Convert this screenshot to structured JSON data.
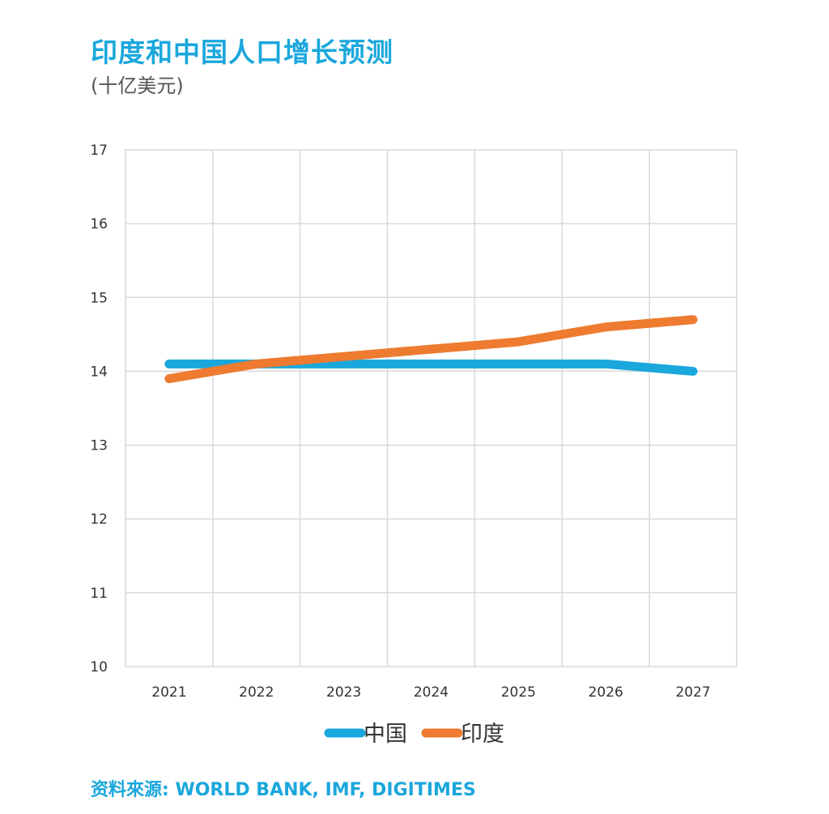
{
  "title": "印度和中国人口增长预测",
  "subtitle": "(十亿美元)",
  "source": "资料來源: WORLD BANK, IMF, DIGITIMES",
  "chart_data": {
    "type": "line",
    "x": [
      "2021",
      "2022",
      "2023",
      "2024",
      "2025",
      "2026",
      "2027"
    ],
    "series": [
      {
        "name": "中国",
        "color": "#1aa7dc",
        "values": [
          14.1,
          14.1,
          14.1,
          14.1,
          14.1,
          14.1,
          14.0
        ]
      },
      {
        "name": "印度",
        "color": "#ee7b30",
        "values": [
          13.9,
          14.1,
          14.2,
          14.3,
          14.4,
          14.6,
          14.7
        ]
      }
    ],
    "ylim": [
      10,
      17
    ],
    "yticks": [
      10,
      11,
      12,
      13,
      14,
      15,
      16,
      17
    ],
    "grid": true,
    "legend_position": "bottom"
  }
}
